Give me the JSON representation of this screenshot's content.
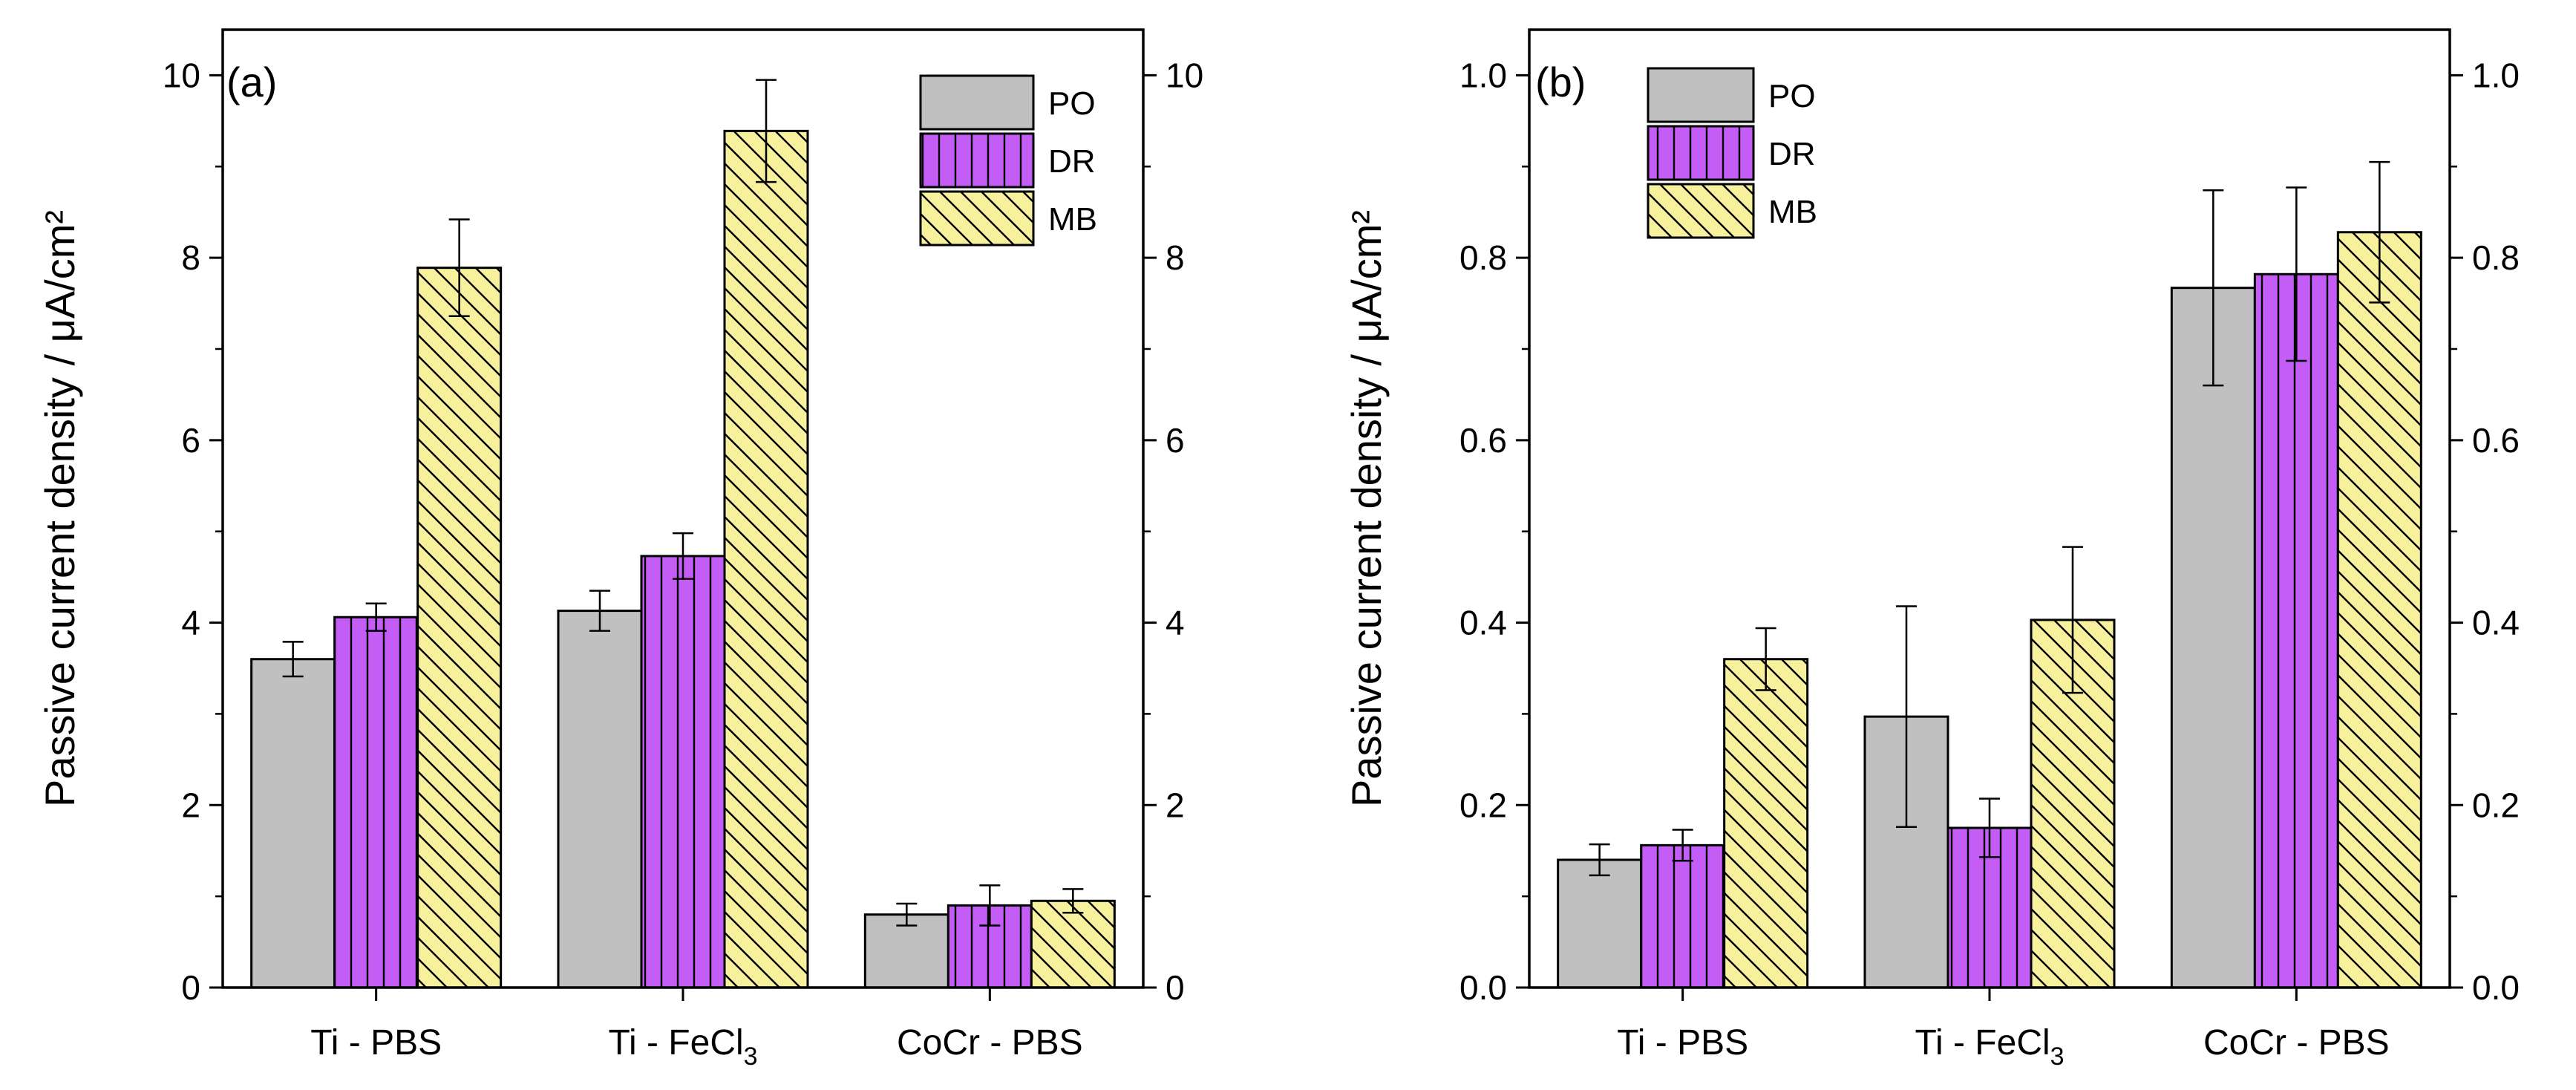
{
  "chart_data": [
    {
      "type": "bar",
      "panel_label": "(a)",
      "categories": [
        "Ti - PBS",
        "Ti - FeCl3",
        "CoCr - PBS"
      ],
      "category_display": [
        {
          "main": "Ti - PBS",
          "sub": ""
        },
        {
          "main": "Ti - FeCl",
          "sub": "3"
        },
        {
          "main": "CoCr - PBS",
          "sub": ""
        }
      ],
      "series": [
        {
          "name": "PO",
          "values": [
            3.6,
            4.13,
            0.8
          ],
          "errors": [
            0.19,
            0.22,
            0.12
          ]
        },
        {
          "name": "DR",
          "values": [
            4.06,
            4.73,
            0.9
          ],
          "errors": [
            0.15,
            0.25,
            0.22
          ]
        },
        {
          "name": "MB",
          "values": [
            7.89,
            9.39,
            0.95
          ],
          "errors": [
            0.53,
            0.56,
            0.13
          ]
        }
      ],
      "ylabel": "Passive current density / μA/cm²",
      "ylim": [
        0,
        10.5
      ],
      "yticks": [
        0,
        2,
        4,
        6,
        8,
        10
      ],
      "ytick_labels": [
        "0",
        "2",
        "4",
        "6",
        "8",
        "10"
      ],
      "right_axis_mirrored": true,
      "legend_position": "top-right"
    },
    {
      "type": "bar",
      "panel_label": "(b)",
      "categories": [
        "Ti - PBS",
        "Ti - FeCl3",
        "CoCr - PBS"
      ],
      "category_display": [
        {
          "main": "Ti - PBS",
          "sub": ""
        },
        {
          "main": "Ti - FeCl",
          "sub": "3"
        },
        {
          "main": "CoCr - PBS",
          "sub": ""
        }
      ],
      "series": [
        {
          "name": "PO",
          "values": [
            0.14,
            0.297,
            0.767
          ],
          "errors": [
            0.017,
            0.121,
            0.107
          ]
        },
        {
          "name": "DR",
          "values": [
            0.156,
            0.175,
            0.782
          ],
          "errors": [
            0.017,
            0.032,
            0.095
          ]
        },
        {
          "name": "MB",
          "values": [
            0.36,
            0.403,
            0.828
          ],
          "errors": [
            0.034,
            0.08,
            0.077
          ]
        }
      ],
      "ylabel": "Passive current density / μA/cm²",
      "ylim": [
        0,
        1.05
      ],
      "yticks": [
        0,
        0.2,
        0.4,
        0.6,
        0.8,
        1.0
      ],
      "ytick_labels": [
        "0.0",
        "0.2",
        "0.4",
        "0.6",
        "0.8",
        "1.0"
      ],
      "right_axis_mirrored": true,
      "legend_position": "top-left"
    }
  ],
  "series_styles": {
    "PO": {
      "fill": "#c0c0c0",
      "pattern": "solid"
    },
    "DR": {
      "fill": "#c35df5",
      "pattern": "vertical-lines"
    },
    "MB": {
      "fill": "#f7f09d",
      "pattern": "diagonal-lines"
    }
  },
  "colors": {
    "axis": "#000000",
    "bar_edge": "#000000",
    "background": "#ffffff"
  }
}
